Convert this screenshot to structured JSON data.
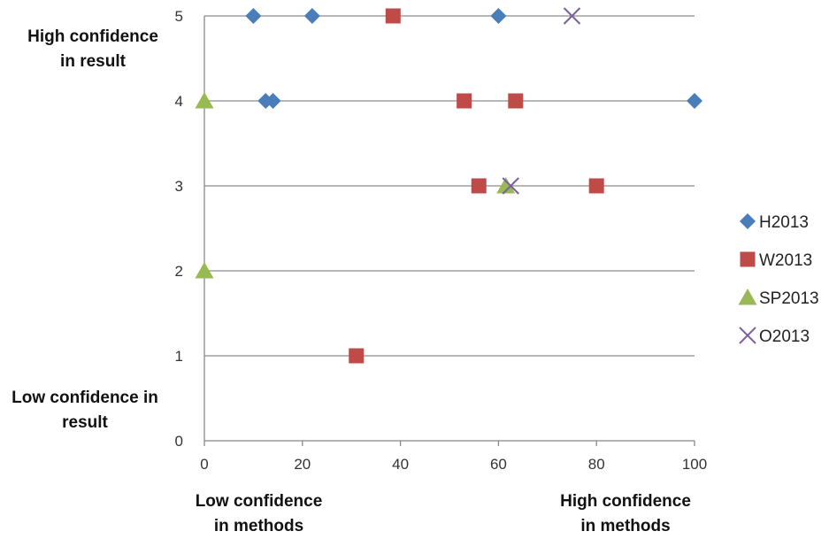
{
  "chart_data": {
    "type": "scatter",
    "title": "",
    "xlabel": "",
    "ylabel": "",
    "xlim": [
      0,
      100
    ],
    "ylim": [
      0,
      5
    ],
    "x_ticks": [
      0,
      20,
      40,
      60,
      80,
      100
    ],
    "y_ticks": [
      0,
      1,
      2,
      3,
      4,
      5
    ],
    "grid": "horizontal",
    "legend_position": "right",
    "annotations": {
      "y_high": [
        "High confidence",
        "in result"
      ],
      "y_low": [
        "Low confidence in",
        "result"
      ],
      "x_low": [
        "Low confidence",
        "in methods"
      ],
      "x_high": [
        "High confidence",
        "in methods"
      ]
    },
    "series": [
      {
        "name": "H2013",
        "marker": "diamond",
        "color": "#4A7EBB",
        "points": [
          [
            10,
            5
          ],
          [
            22,
            5
          ],
          [
            60,
            5
          ],
          [
            12.5,
            4
          ],
          [
            14,
            4
          ],
          [
            100,
            4
          ]
        ]
      },
      {
        "name": "W2013",
        "marker": "square",
        "color": "#BE4B48",
        "points": [
          [
            38.5,
            5
          ],
          [
            53,
            4
          ],
          [
            63.5,
            4
          ],
          [
            56,
            3
          ],
          [
            80,
            3
          ],
          [
            31,
            1
          ]
        ]
      },
      {
        "name": "SP2013",
        "marker": "triangle",
        "color": "#98B954",
        "points": [
          [
            0,
            4
          ],
          [
            61.5,
            3
          ],
          [
            0,
            2
          ]
        ]
      },
      {
        "name": "O2013",
        "marker": "x",
        "color": "#7D60A0",
        "points": [
          [
            75,
            5
          ],
          [
            62.5,
            3
          ]
        ]
      }
    ]
  }
}
